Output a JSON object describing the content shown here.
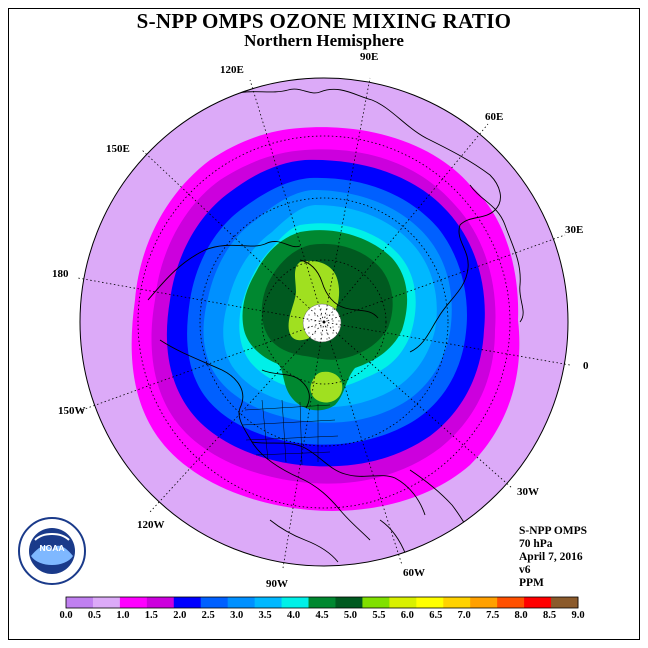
{
  "header": {
    "title": "S-NPP OMPS OZONE MIXING RATIO",
    "subtitle": "Northern Hemisphere"
  },
  "longitudes": {
    "e90": "90E",
    "e120": "120E",
    "e60": "60E",
    "e150": "150E",
    "e30": "30E",
    "d180": "180",
    "d0": "0",
    "w150": "150W",
    "w30": "30W",
    "w120": "120W",
    "w60": "60W",
    "w90": "90W"
  },
  "info": {
    "instrument": "S-NPP OMPS",
    "level": "70 hPa",
    "date": "April 7, 2016",
    "version": "v6",
    "unit": "PPM"
  },
  "colorbar": {
    "ticks": [
      "0.0",
      "0.5",
      "1.0",
      "1.5",
      "2.0",
      "2.5",
      "3.0",
      "3.5",
      "4.0",
      "4.5",
      "5.0",
      "5.5",
      "6.0",
      "6.5",
      "7.0",
      "7.5",
      "8.0",
      "8.5",
      "9.0"
    ],
    "colors": [
      "#c080f0",
      "#dcaaf8",
      "#ff00ff",
      "#cc00dd",
      "#0000ff",
      "#0060ff",
      "#0090ff",
      "#00b8ff",
      "#00f0e8",
      "#008830",
      "#005a20",
      "#80e000",
      "#d8f000",
      "#ffff00",
      "#ffd200",
      "#ffa000",
      "#ff5000",
      "#ff0000",
      "#8b5a2b"
    ]
  },
  "logo": {
    "text": "NOAA"
  },
  "colors": {
    "background_ring": "#dcaaf8",
    "magenta": "#ff00ff",
    "blue": "#0000ff",
    "dark_green": "#005a20",
    "light_green": "#a0e020"
  }
}
